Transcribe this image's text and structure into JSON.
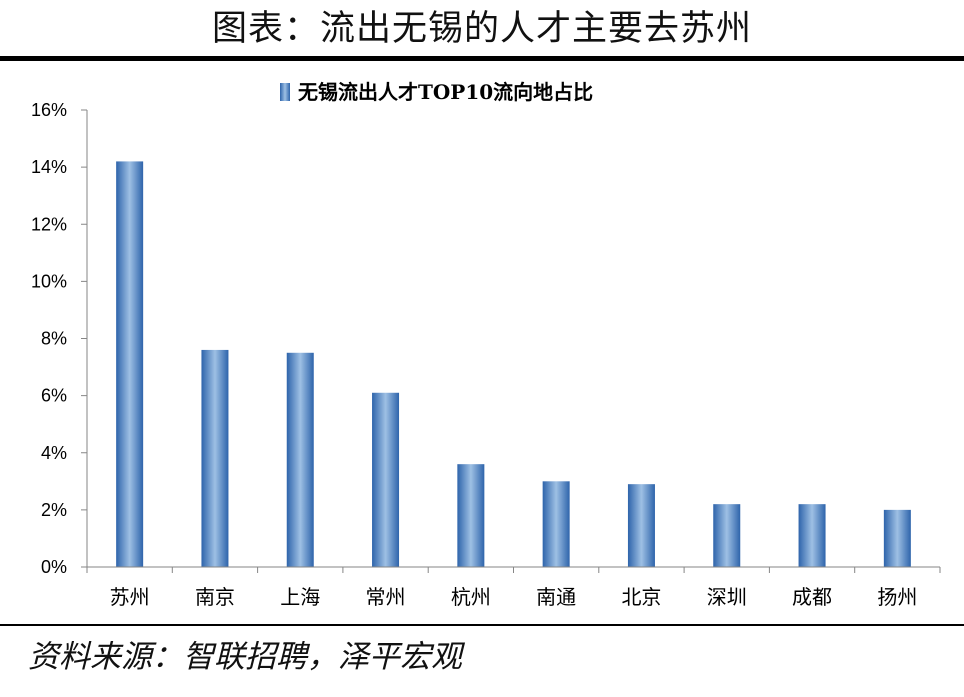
{
  "figure": {
    "title": "图表：流出无锡的人才主要去苏州",
    "source": "资料来源：智联招聘，泽平宏观"
  },
  "chart_data": {
    "type": "bar",
    "categories": [
      "苏州",
      "南京",
      "上海",
      "常州",
      "杭州",
      "南通",
      "北京",
      "深圳",
      "成都",
      "扬州"
    ],
    "series": [
      {
        "name": "无锡流出人才TOP10流向地占比",
        "values": [
          14.2,
          7.6,
          7.5,
          6.1,
          3.6,
          3.0,
          2.9,
          2.2,
          2.2,
          2.0
        ]
      }
    ],
    "y_ticks": [
      "0%",
      "2%",
      "4%",
      "6%",
      "8%",
      "10%",
      "12%",
      "14%",
      "16%"
    ],
    "ylim": [
      0,
      16
    ],
    "y_unit": "%",
    "grid": false,
    "legend": "top-center",
    "colors": {
      "bar_dark": "#2e64ab",
      "bar_light": "#9ec0e4",
      "axis": "#868686"
    }
  }
}
